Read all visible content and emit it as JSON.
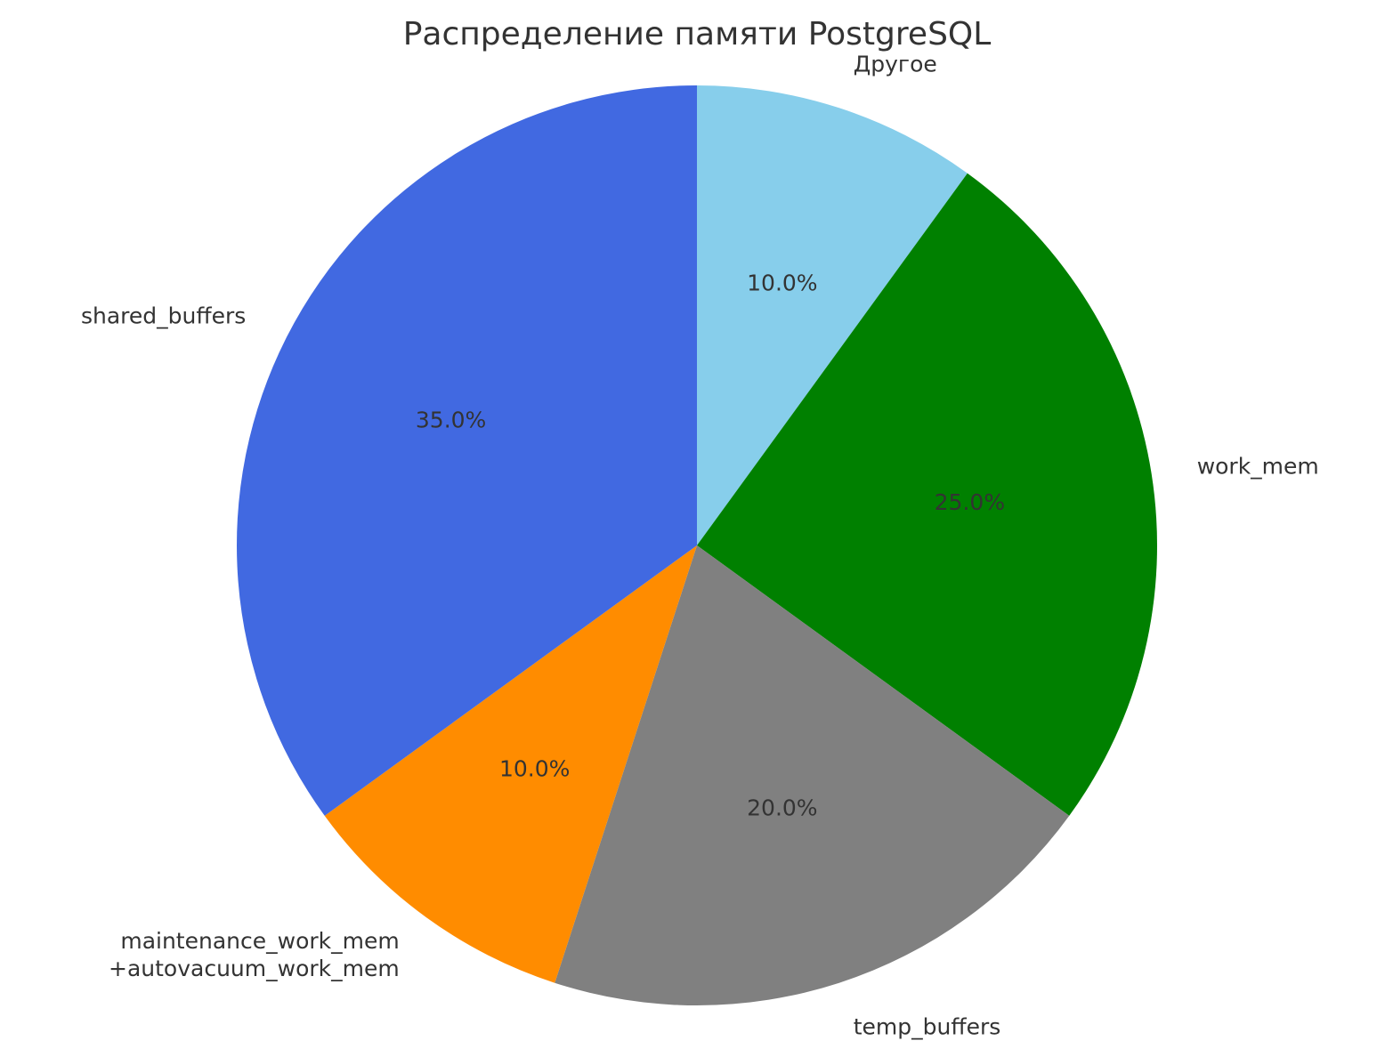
{
  "chart_data": {
    "type": "pie",
    "title": "Распределение памяти PostgreSQL",
    "start_angle_deg": 90,
    "direction": "clockwise",
    "slices": [
      {
        "label": "Другое",
        "value": 10.0,
        "pct_label": "10.0%",
        "color": "#87CEEB"
      },
      {
        "label": "work_mem",
        "value": 25.0,
        "pct_label": "25.0%",
        "color": "#008000"
      },
      {
        "label": "temp_buffers",
        "value": 20.0,
        "pct_label": "20.0%",
        "color": "#808080"
      },
      {
        "label": "maintenance_work_mem\n+autovacuum_work_mem",
        "value": 10.0,
        "pct_label": "10.0%",
        "color": "#FF8C00"
      },
      {
        "label": "shared_buffers",
        "value": 35.0,
        "pct_label": "35.0%",
        "color": "#4169E1"
      }
    ]
  }
}
